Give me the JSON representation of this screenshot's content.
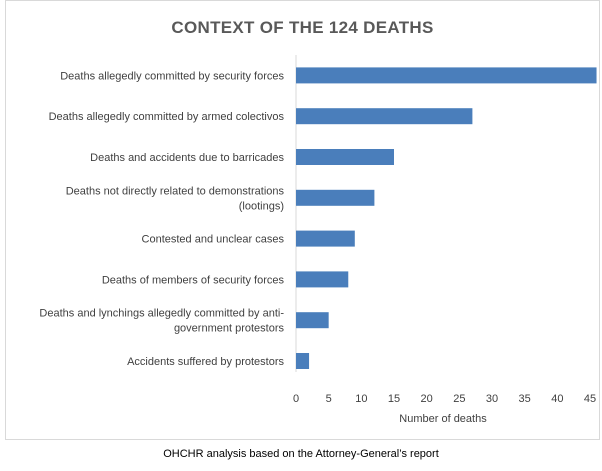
{
  "chart_data": {
    "type": "bar",
    "orientation": "horizontal",
    "title": "CONTEXT OF THE 124 DEATHS",
    "xlabel": "Number of deaths",
    "ylabel": "",
    "categories": [
      "Deaths allegedly committed by security forces",
      "Deaths allegedly committed by armed colectivos",
      "Deaths and accidents due to barricades",
      "Deaths not directly related to demonstrations (lootings)",
      "Contested and unclear cases",
      "Deaths of members of security forces",
      "Deaths and lynchings allegedly committed by anti-government protestors",
      "Accidents suffered by protestors"
    ],
    "category_label_lines": [
      [
        "Deaths allegedly committed by security forces"
      ],
      [
        "Deaths allegedly committed by armed colectivos"
      ],
      [
        "Deaths and accidents due to barricades"
      ],
      [
        "Deaths not directly related to demonstrations",
        "(lootings)"
      ],
      [
        "Contested and unclear cases"
      ],
      [
        "Deaths of members of security forces"
      ],
      [
        "Deaths and lynchings allegedly committed by anti-",
        "government protestors"
      ],
      [
        "Accidents suffered by protestors"
      ]
    ],
    "values": [
      46,
      27,
      15,
      12,
      9,
      8,
      5,
      2
    ],
    "xlim": [
      0,
      45
    ],
    "xticks": [
      0,
      5,
      10,
      15,
      20,
      25,
      30,
      35,
      40,
      45
    ],
    "grid": false,
    "bar_color": "#4a7ebb"
  },
  "caption": "OHCHR analysis based on the Attorney-General’s report"
}
